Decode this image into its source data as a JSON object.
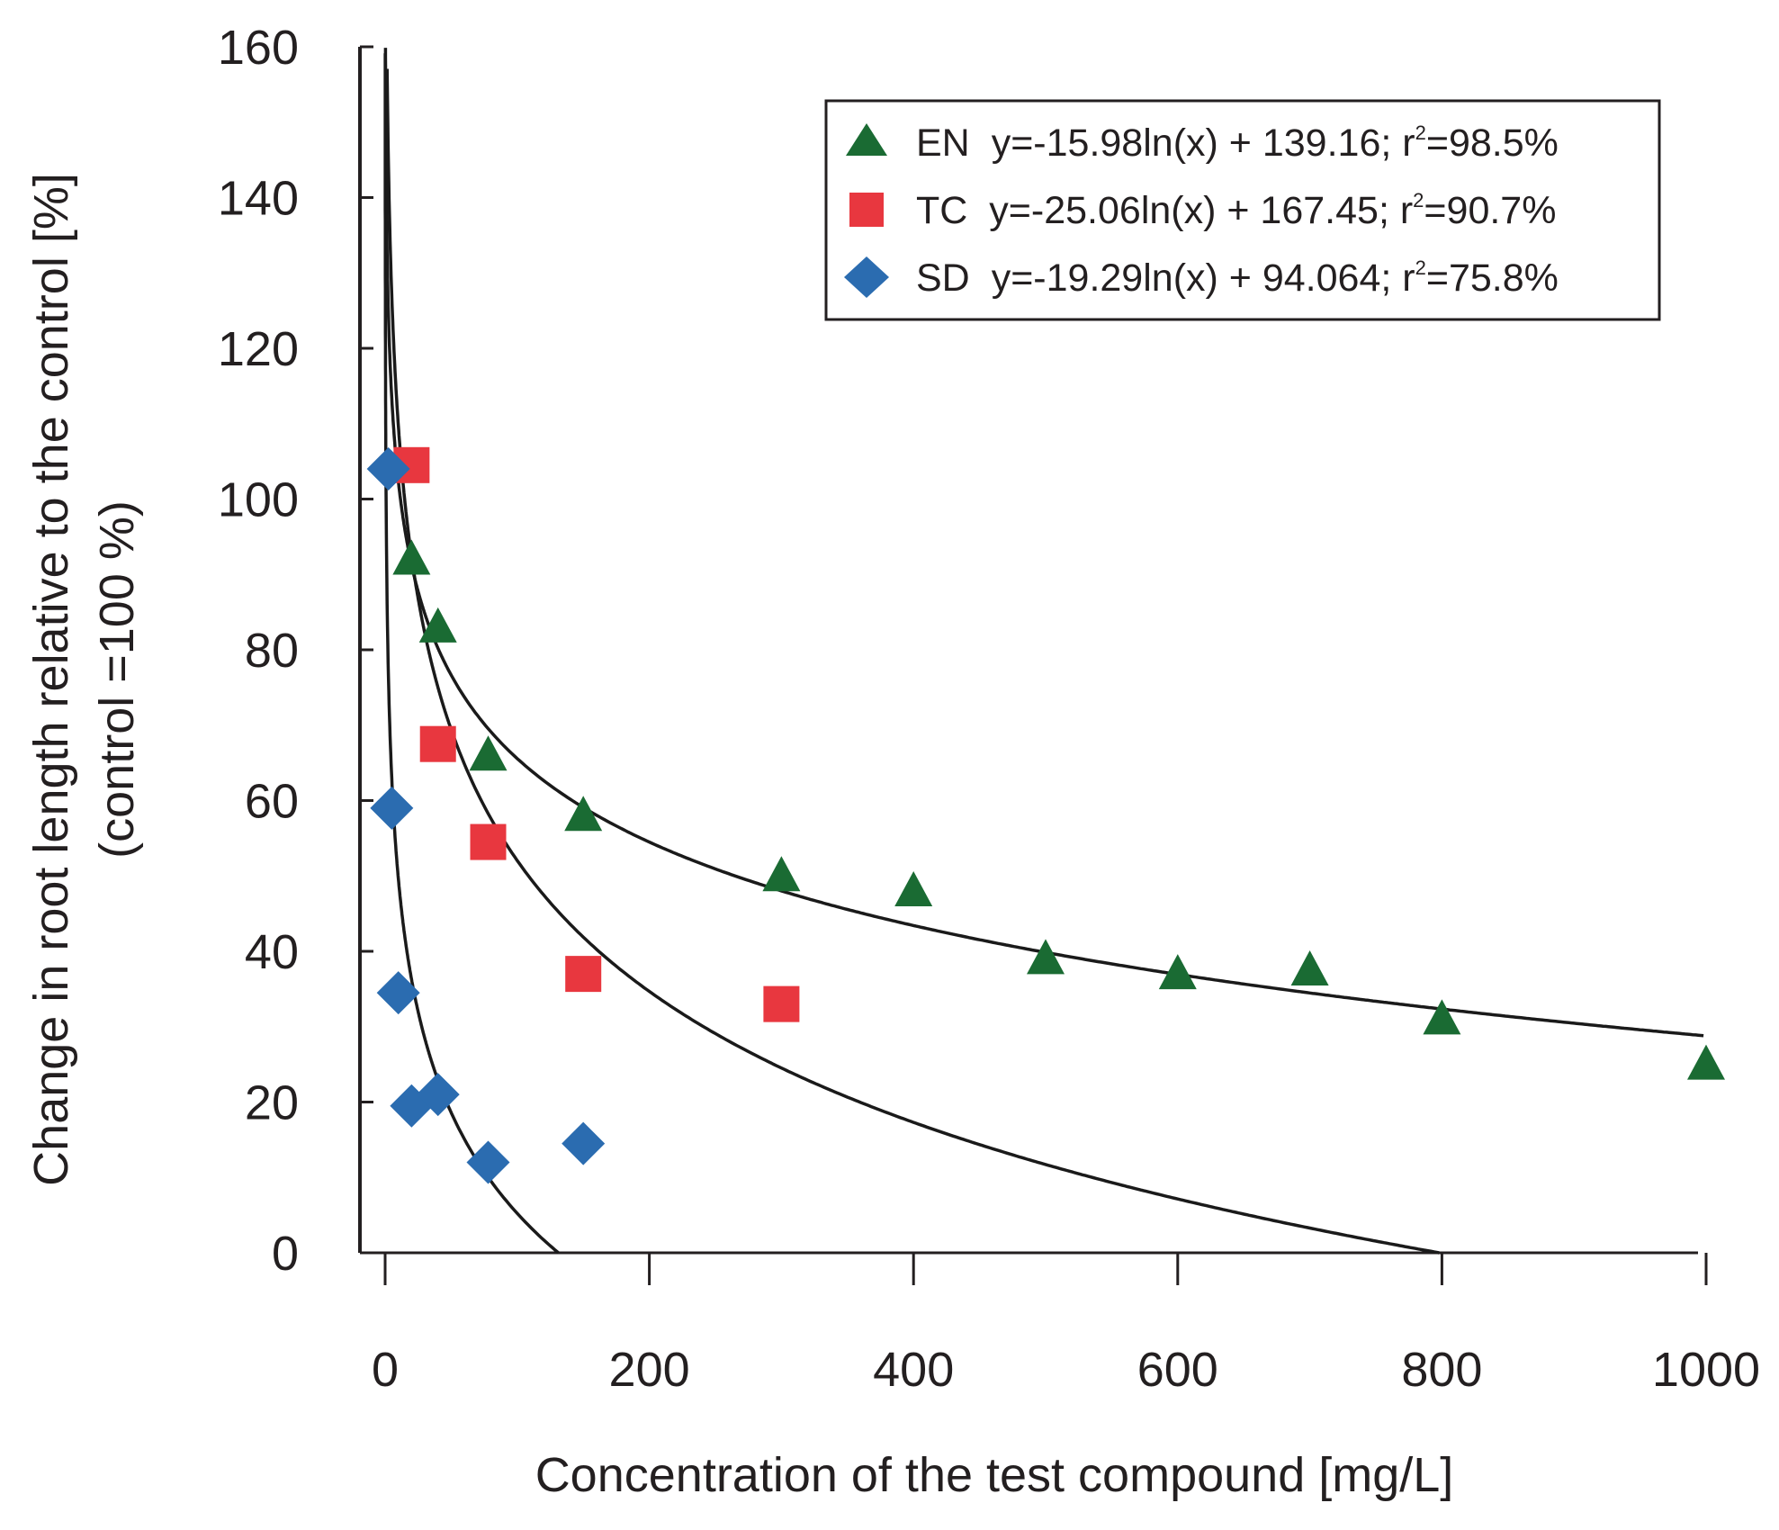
{
  "chart_data": {
    "type": "scatter",
    "title": "",
    "xlabel": "Concentration of the test compound [mg/L]",
    "ylabel_line1": "Change in root length relative to the control [%]",
    "ylabel_line2": "(control =100 %)",
    "xlim": [
      0,
      1000
    ],
    "ylim": [
      0,
      160
    ],
    "xticks": [
      0,
      200,
      400,
      600,
      800,
      1000
    ],
    "yticks": [
      0,
      20,
      40,
      60,
      80,
      100,
      120,
      140,
      160
    ],
    "grid": false,
    "legend_position": "top-right",
    "series": [
      {
        "name": "EN",
        "marker": "triangle",
        "color": "#1a6b33",
        "equation_prefix": "y=-15.98ln(x) + 139.16; r",
        "r2_value": "=98.5%",
        "fit": {
          "a": -15.98,
          "b": 139.16
        },
        "points": [
          [
            20,
            92
          ],
          [
            40,
            83
          ],
          [
            78,
            66
          ],
          [
            150,
            58
          ],
          [
            300,
            50
          ],
          [
            400,
            48
          ],
          [
            500,
            39
          ],
          [
            600,
            37
          ],
          [
            700,
            37.5
          ],
          [
            800,
            31
          ],
          [
            1000,
            25
          ]
        ]
      },
      {
        "name": "TC",
        "marker": "square",
        "color": "#e8373f",
        "equation_prefix": "y=-25.06ln(x) + 167.45; r",
        "r2_value": "=90.7%",
        "fit": {
          "a": -25.06,
          "b": 167.45
        },
        "points": [
          [
            20,
            104.5
          ],
          [
            40,
            67.5
          ],
          [
            78,
            54.5
          ],
          [
            150,
            37
          ],
          [
            300,
            33
          ]
        ]
      },
      {
        "name": "SD",
        "marker": "diamond",
        "color": "#2b6cb0",
        "equation_prefix": "y=-19.29ln(x) + 94.064; r",
        "r2_value": "=75.8%",
        "fit": {
          "a": -19.29,
          "b": 94.064
        },
        "points": [
          [
            2.5,
            104
          ],
          [
            5,
            59
          ],
          [
            10,
            34.5
          ],
          [
            20,
            19.5
          ],
          [
            40,
            21
          ],
          [
            78,
            12
          ],
          [
            150,
            14.5
          ]
        ]
      }
    ],
    "superscript": "2"
  }
}
